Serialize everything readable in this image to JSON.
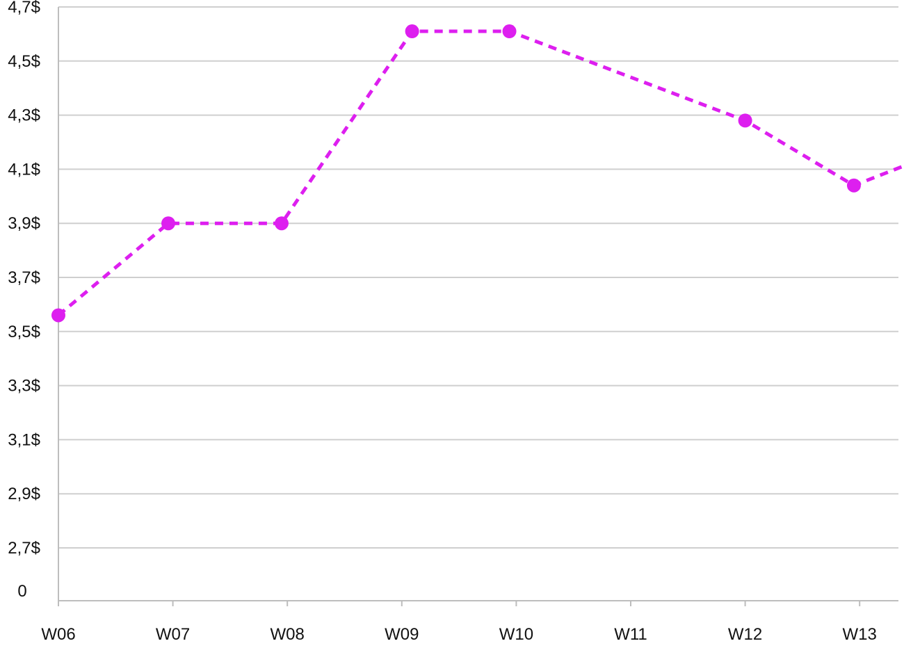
{
  "chart_data": {
    "type": "line",
    "title": "",
    "xlabel": "",
    "ylabel": "",
    "categories": [
      "W06",
      "W07",
      "W08",
      "W09",
      "W10",
      "W11",
      "W12",
      "W13"
    ],
    "x_points": [
      0,
      0.96,
      1.95,
      3.09,
      3.94,
      6.0,
      6.95,
      8.1
    ],
    "x_ticks": [
      0,
      1,
      2,
      3,
      4,
      5,
      6,
      7
    ],
    "series": [
      {
        "values": [
          3.56,
          3.9,
          3.9,
          4.61,
          4.61,
          4.28,
          4.04,
          4.23
        ],
        "color": "#dd1fef",
        "style": "dashed",
        "markers": true
      }
    ],
    "y_tick_values": [
      2.7,
      2.9,
      3.1,
      3.3,
      3.5,
      3.7,
      3.9,
      4.1,
      4.3,
      4.5,
      4.7
    ],
    "y_tick_labels": [
      "2,7$",
      "2,9$",
      "3,1$",
      "3,3$",
      "3,5$",
      "3,7$",
      "3,9$",
      "4,1$",
      "4,3$",
      "4,5$",
      "4,7$"
    ],
    "y_zero_label": "0",
    "ylim": [
      2.7,
      4.7
    ],
    "grid": true,
    "legend": "none"
  }
}
